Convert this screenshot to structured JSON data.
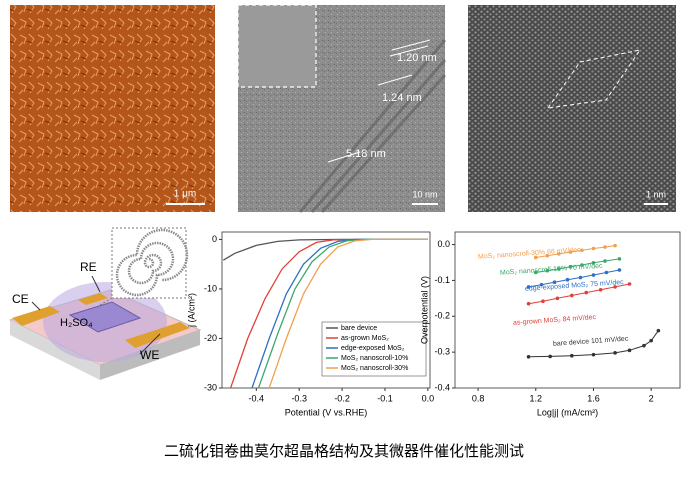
{
  "caption": "二硫化钼卷曲莫尔超晶格结构及其微器件催化性能测试",
  "images": [
    {
      "scale_bar": "1 μm"
    },
    {
      "scale_bar": "10 nm",
      "annotations": [
        "1.20 nm",
        "1.24 nm",
        "5.18 nm"
      ]
    },
    {
      "scale_bar": "1 nm"
    }
  ],
  "schematic": {
    "labels": [
      "RE",
      "CE",
      "H₂SO₄",
      "WE"
    ]
  },
  "chart_data": [
    {
      "type": "line",
      "x_label": "Potential (V vs.RHE)",
      "y_label": "j (A/cm²)",
      "xlim": [
        -0.48,
        0.005
      ],
      "xticks": [
        -0.4,
        -0.3,
        -0.2,
        -0.1,
        {
          "value": 0,
          "label": "0.0"
        }
      ],
      "ylim": [
        -30,
        1.5
      ],
      "yticks": [
        0,
        -10,
        -20,
        -30
      ],
      "legend": "lower right",
      "series": [
        {
          "name": "bare device",
          "color": "#555555",
          "x": [
            -0.477,
            -0.45,
            -0.4,
            -0.35,
            -0.3,
            -0.2,
            0
          ],
          "values": [
            -4.2,
            -2.8,
            -1.2,
            -0.4,
            -0.1,
            0,
            0
          ]
        },
        {
          "name": "as-grown MoS₂",
          "color": "#e0413a",
          "x": [
            -0.46,
            -0.42,
            -0.38,
            -0.34,
            -0.3,
            -0.26,
            -0.22,
            -0.15,
            0
          ],
          "values": [
            -30,
            -20,
            -12,
            -6,
            -2.5,
            -0.6,
            -0.1,
            0,
            0
          ]
        },
        {
          "name": "edge-exposed MoS₂",
          "color": "#2f6fc4",
          "x": [
            -0.41,
            -0.37,
            -0.33,
            -0.29,
            -0.25,
            -0.21,
            -0.17,
            0
          ],
          "values": [
            -30,
            -20,
            -11,
            -5,
            -1.8,
            -0.4,
            0,
            0
          ]
        },
        {
          "name": "MoS₂ nanoscroll-10%",
          "color": "#3aa86b",
          "x": [
            -0.395,
            -0.35,
            -0.31,
            -0.27,
            -0.23,
            -0.19,
            -0.15,
            0
          ],
          "values": [
            -30,
            -19,
            -10,
            -4.5,
            -1.5,
            -0.3,
            0,
            0
          ]
        },
        {
          "name": "MoS₂ nanoscroll-30%",
          "color": "#f0a050",
          "x": [
            -0.37,
            -0.33,
            -0.29,
            -0.25,
            -0.21,
            -0.17,
            -0.13,
            0
          ],
          "values": [
            -30,
            -20,
            -11,
            -5,
            -1.5,
            -0.3,
            0,
            0
          ]
        }
      ]
    },
    {
      "type": "line",
      "markers": true,
      "x_label": "Log|j| (mA/cm²)",
      "y_label": "Overpotential (V)",
      "xlim": [
        0.64,
        2.2
      ],
      "xticks": [
        0.8,
        1.2,
        1.6,
        2.0
      ],
      "ylim": [
        -0.4,
        0.035
      ],
      "yticks": [
        {
          "value": 0,
          "label": "0.0"
        },
        -0.1,
        -0.2,
        -0.3,
        -0.4
      ],
      "legend": "inline",
      "series": [
        {
          "name": "MoS₂ nanoscroll-30% 66 mV/dec",
          "color": "#f0a050",
          "x": [
            1.2,
            1.28,
            1.36,
            1.44,
            1.52,
            1.6,
            1.68,
            1.75
          ],
          "values": [
            -0.036,
            -0.031,
            -0.026,
            -0.021,
            -0.016,
            -0.011,
            -0.007,
            -0.003
          ]
        },
        {
          "name": "MoS₂ nanoscroll-10% 70 mV/dec",
          "color": "#3aa86b",
          "x": [
            1.2,
            1.28,
            1.36,
            1.44,
            1.52,
            1.6,
            1.68,
            1.78
          ],
          "values": [
            -0.078,
            -0.073,
            -0.068,
            -0.062,
            -0.057,
            -0.051,
            -0.046,
            -0.04
          ]
        },
        {
          "name": "edge-exposed MoS₂ 75 mV/dec",
          "color": "#2f6fc4",
          "x": [
            1.15,
            1.24,
            1.33,
            1.42,
            1.51,
            1.6,
            1.69,
            1.78
          ],
          "values": [
            -0.118,
            -0.112,
            -0.105,
            -0.098,
            -0.092,
            -0.085,
            -0.078,
            -0.071
          ]
        },
        {
          "name": "as-grown MoS₂ 84 mV/dec",
          "color": "#e0413a",
          "x": [
            1.15,
            1.25,
            1.35,
            1.45,
            1.55,
            1.65,
            1.75,
            1.85
          ],
          "values": [
            -0.165,
            -0.158,
            -0.15,
            -0.142,
            -0.134,
            -0.126,
            -0.118,
            -0.11
          ]
        },
        {
          "name": "bare device 101 mV/dec",
          "color": "#333333",
          "x": [
            1.15,
            1.3,
            1.45,
            1.6,
            1.75,
            1.85,
            1.95,
            2.0,
            2.05
          ],
          "values": [
            -0.313,
            -0.312,
            -0.31,
            -0.307,
            -0.302,
            -0.295,
            -0.282,
            -0.268,
            -0.24
          ]
        }
      ]
    }
  ]
}
